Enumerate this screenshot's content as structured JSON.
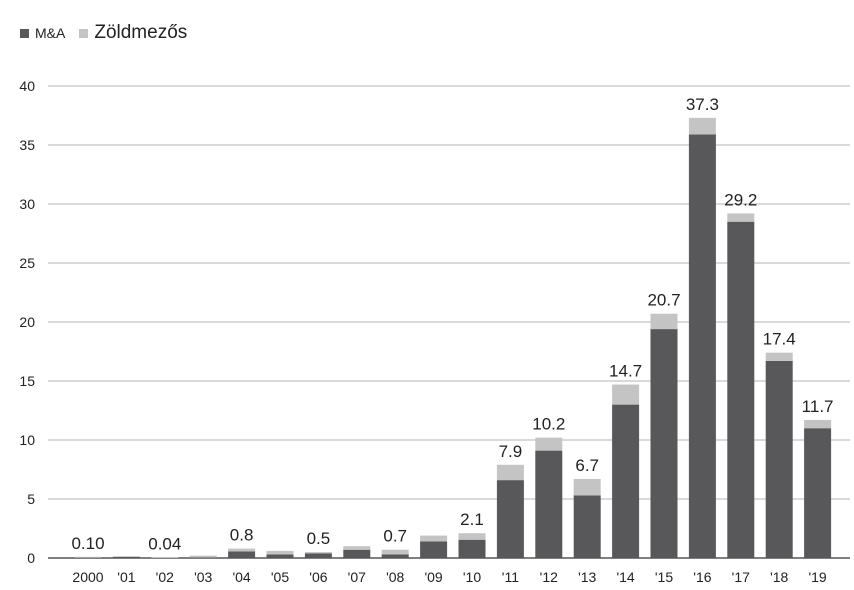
{
  "legend": {
    "ma_label": "M&A",
    "green_label": "Zöldmezős"
  },
  "colors": {
    "ma": "#58585a",
    "green": "#c4c4c4",
    "grid": "#9a9a9a",
    "axis": "#333333",
    "text": "#222222"
  },
  "chart_data": {
    "type": "bar",
    "stacked": true,
    "categories": [
      "2000",
      "'01",
      "'02",
      "'03",
      "'04",
      "'05",
      "'06",
      "'07",
      "'08",
      "'09",
      "'10",
      "'11",
      "'12",
      "'13",
      "'14",
      "'15",
      "'16",
      "'17",
      "'18",
      "'19"
    ],
    "series": [
      {
        "name": "M&A",
        "values": [
          0.02,
          0.1,
          0.0,
          0.05,
          0.55,
          0.3,
          0.4,
          0.7,
          0.3,
          1.4,
          1.55,
          6.6,
          9.1,
          5.3,
          13.0,
          19.4,
          35.9,
          28.5,
          16.7,
          11.0
        ]
      },
      {
        "name": "Zöldmezős",
        "values": [
          0.08,
          0.05,
          0.04,
          0.15,
          0.25,
          0.3,
          0.1,
          0.3,
          0.4,
          0.5,
          0.55,
          1.3,
          1.1,
          1.4,
          1.7,
          1.3,
          1.4,
          0.7,
          0.7,
          0.7
        ]
      }
    ],
    "data_labels": [
      "0.10",
      "",
      "0.04",
      "",
      "0.8",
      "",
      "0.5",
      "",
      "0.7",
      "",
      "2.1",
      "7.9",
      "10.2",
      "6.7",
      "14.7",
      "20.7",
      "37.3",
      "29.2",
      "17.4",
      "11.7"
    ],
    "ylim": [
      0,
      40
    ],
    "yticks": [
      0,
      5,
      10,
      15,
      20,
      25,
      30,
      35,
      40
    ],
    "grid": true,
    "legend_position": "top-left",
    "title": "",
    "xlabel": "",
    "ylabel": ""
  }
}
